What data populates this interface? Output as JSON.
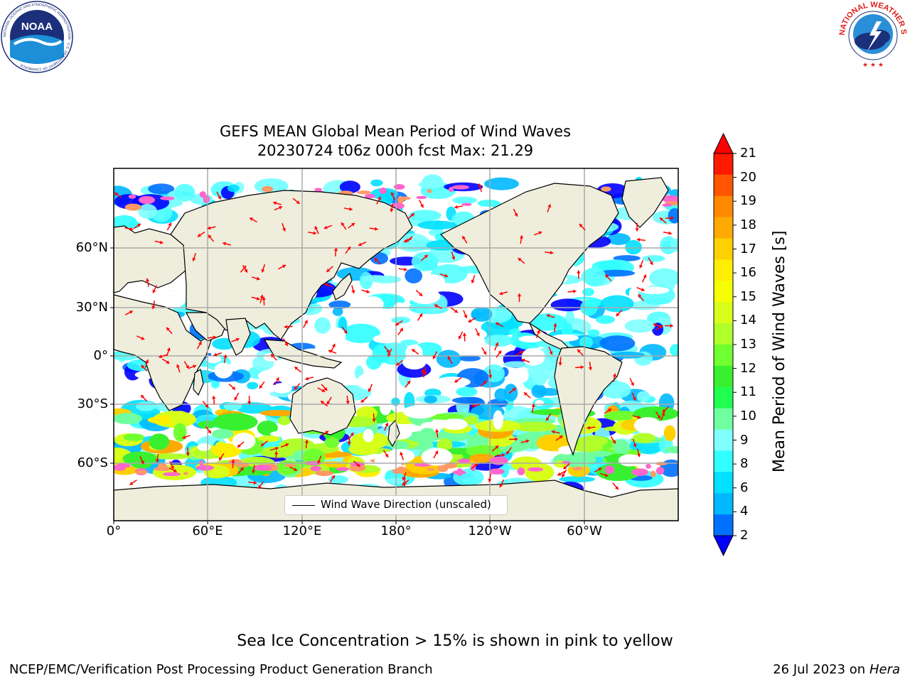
{
  "header": {
    "title_line1": "GEFS MEAN Global Mean Period of Wind Waves",
    "title_line2": "20230724 t06z 000h fcst   Max: 21.29"
  },
  "logos": {
    "left_name": "NOAA",
    "left_ring_text": "NATIONAL OCEANIC AND ATMOSPHERIC ADMINISTRATION · U.S. DEPARTMENT OF COMMERCE",
    "right_ring_text": "NATIONAL WEATHER SERVICE"
  },
  "map": {
    "lat_labels": [
      "60°N",
      "30°N",
      "0°",
      "30°S",
      "60°S"
    ],
    "lon_labels": [
      "0°",
      "60°E",
      "120°E",
      "180°",
      "120°W",
      "60°W"
    ],
    "legend_label": "Wind Wave Direction (unscaled)",
    "colors": {
      "land": "#efeedd",
      "arrow": "#ff0000",
      "ice": "#ff66cc"
    }
  },
  "colorbar": {
    "title": "Mean Period of Wind Waves [s]",
    "ticks": [
      "21",
      "20",
      "19",
      "18",
      "17",
      "16",
      "15",
      "14",
      "13",
      "12",
      "11",
      "10",
      "9",
      "8",
      "6",
      "4",
      "2"
    ],
    "colors": [
      "#ff1a00",
      "#ff5500",
      "#ff8800",
      "#ffaa00",
      "#ffd000",
      "#ffee00",
      "#f5ff00",
      "#d8ff1a",
      "#b0ff2a",
      "#70ff30",
      "#38f030",
      "#20ff50",
      "#70ffa0",
      "#80ffff",
      "#30ffff",
      "#00e0ff",
      "#00b8ff",
      "#0070ff"
    ],
    "under_color": "#0000ff",
    "over_color": "#ff0000"
  },
  "footer": {
    "ice_note": "Sea Ice Concentration > 15% is shown in pink to yellow",
    "left": "NCEP/EMC/Verification Post Processing Product Generation Branch",
    "right_date": "26 Jul 2023 on",
    "right_host": "Hera"
  }
}
